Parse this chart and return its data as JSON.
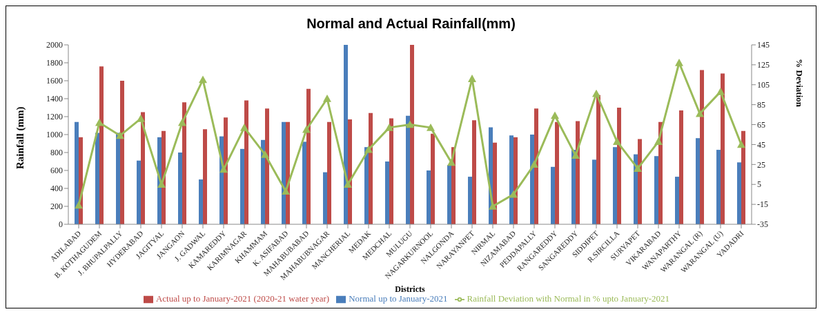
{
  "chart_data": {
    "type": "bar",
    "title": "Normal and Actual Rainfall(mm)",
    "xlabel": "Districts",
    "ylabel": "Rainfall (mm)",
    "y2label": "% Deviation",
    "categories": [
      "ADILABAD",
      "B. KOTHAGUDEM",
      "J. BHUPALPALLY",
      "HYDERABAD",
      "JAGITYAL",
      "JANGAON",
      "J. GADWAL",
      "KAMAREDDY",
      "KARIMNAGAR",
      "KHAMMAM",
      "K. ASIFABAD",
      "MAHABUBABAD",
      "MAHABUBNAGAR",
      "MANCHERIAL",
      "MEDAK",
      "MEDCHAL",
      "MULUGU",
      "NAGARKURNOOL",
      "NALGONDA",
      "NARAYANPET",
      "NIRMAL",
      "NIZAMABAD",
      "PEDDAPALLY",
      "RANGAREDDY",
      "SANGAREDDY",
      "SIDDIPET",
      "R.SIRCILLA",
      "SURYAPET",
      "VIKARABAD",
      "WANAPARTHY",
      "WARANGAL (R)",
      "WARANGAL (U)",
      "YADADRI"
    ],
    "series": [
      {
        "name": "Normal up to January-2021",
        "color": "#4a7ebb",
        "values": [
          1140,
          1020,
          1020,
          710,
          970,
          800,
          500,
          980,
          840,
          940,
          1140,
          920,
          580,
          2000,
          860,
          700,
          1210,
          600,
          660,
          530,
          1080,
          990,
          1000,
          640,
          830,
          720,
          860,
          780,
          760,
          530,
          960,
          830,
          690
        ]
      },
      {
        "name": "Actual up to January-2021   (2020-21 water year)",
        "color": "#be4b48",
        "values": [
          970,
          1760,
          1600,
          1250,
          1040,
          1360,
          1060,
          1190,
          1380,
          1290,
          1140,
          1510,
          1140,
          1170,
          1240,
          1180,
          2000,
          1010,
          860,
          1160,
          910,
          970,
          1290,
          1140,
          1150,
          1440,
          1300,
          950,
          1140,
          1270,
          1720,
          1680,
          1040
        ]
      },
      {
        "name": "Rainfall Deviation with Normal in % upto January-2021",
        "color": "#9bbb59",
        "type": "line",
        "axis": "y2",
        "values": [
          -16,
          67,
          54,
          71,
          5,
          67,
          110,
          20,
          62,
          35,
          -2,
          60,
          91,
          5,
          40,
          62,
          65,
          62,
          27,
          111,
          -17,
          -5,
          25,
          74,
          34,
          96,
          48,
          21,
          48,
          127,
          76,
          98,
          45
        ]
      }
    ],
    "ylim": [
      0,
      2000
    ],
    "yticks": [
      0,
      200,
      400,
      600,
      800,
      1000,
      1200,
      1400,
      1600,
      1800,
      2000
    ],
    "y2lim": [
      -35,
      145
    ],
    "y2ticks": [
      -35,
      -15,
      5,
      25,
      45,
      65,
      85,
      105,
      125,
      145
    ],
    "grid": false,
    "legend": "bottom",
    "marker": "triangle",
    "line_style": "solid"
  }
}
